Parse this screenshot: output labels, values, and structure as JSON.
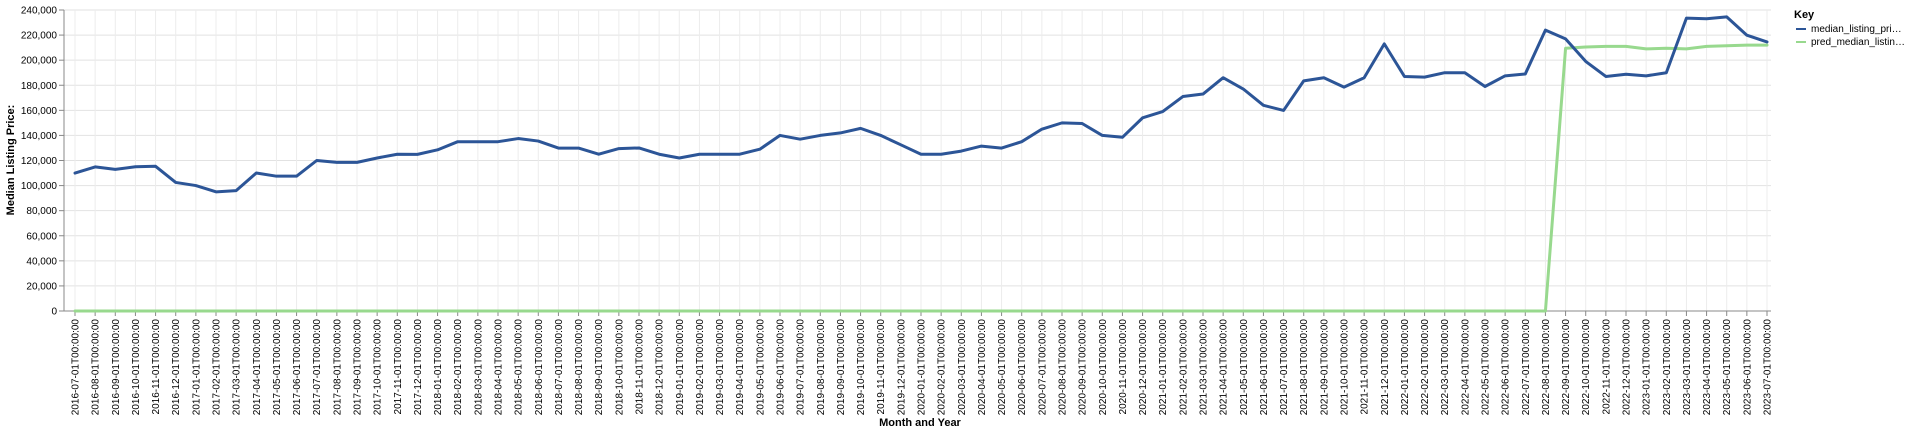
{
  "chart_data": {
    "type": "line",
    "xlabel": "Month and Year",
    "ylabel": "Median Listing Price:",
    "ylim": [
      0,
      240000
    ],
    "yticks": [
      "0",
      "20,000",
      "40,000",
      "60,000",
      "80,000",
      "100,000",
      "120,000",
      "140,000",
      "160,000",
      "180,000",
      "200,000",
      "220,000",
      "240,000"
    ],
    "grid": true,
    "legend": {
      "title": "Key",
      "position": "right"
    },
    "x": [
      "2016-07-01T00:00:00",
      "2016-08-01T00:00:00",
      "2016-09-01T00:00:00",
      "2016-10-01T00:00:00",
      "2016-11-01T00:00:00",
      "2016-12-01T00:00:00",
      "2017-01-01T00:00:00",
      "2017-02-01T00:00:00",
      "2017-03-01T00:00:00",
      "2017-04-01T00:00:00",
      "2017-05-01T00:00:00",
      "2017-06-01T00:00:00",
      "2017-07-01T00:00:00",
      "2017-08-01T00:00:00",
      "2017-09-01T00:00:00",
      "2017-10-01T00:00:00",
      "2017-11-01T00:00:00",
      "2017-12-01T00:00:00",
      "2018-01-01T00:00:00",
      "2018-02-01T00:00:00",
      "2018-03-01T00:00:00",
      "2018-04-01T00:00:00",
      "2018-05-01T00:00:00",
      "2018-06-01T00:00:00",
      "2018-07-01T00:00:00",
      "2018-08-01T00:00:00",
      "2018-09-01T00:00:00",
      "2018-10-01T00:00:00",
      "2018-11-01T00:00:00",
      "2018-12-01T00:00:00",
      "2019-01-01T00:00:00",
      "2019-02-01T00:00:00",
      "2019-03-01T00:00:00",
      "2019-04-01T00:00:00",
      "2019-05-01T00:00:00",
      "2019-06-01T00:00:00",
      "2019-07-01T00:00:00",
      "2019-08-01T00:00:00",
      "2019-09-01T00:00:00",
      "2019-10-01T00:00:00",
      "2019-11-01T00:00:00",
      "2019-12-01T00:00:00",
      "2020-01-01T00:00:00",
      "2020-02-01T00:00:00",
      "2020-03-01T00:00:00",
      "2020-04-01T00:00:00",
      "2020-05-01T00:00:00",
      "2020-06-01T00:00:00",
      "2020-07-01T00:00:00",
      "2020-08-01T00:00:00",
      "2020-09-01T00:00:00",
      "2020-10-01T00:00:00",
      "2020-11-01T00:00:00",
      "2020-12-01T00:00:00",
      "2021-01-01T00:00:00",
      "2021-02-01T00:00:00",
      "2021-03-01T00:00:00",
      "2021-04-01T00:00:00",
      "2021-05-01T00:00:00",
      "2021-06-01T00:00:00",
      "2021-07-01T00:00:00",
      "2021-08-01T00:00:00",
      "2021-09-01T00:00:00",
      "2021-10-01T00:00:00",
      "2021-11-01T00:00:00",
      "2021-12-01T00:00:00",
      "2022-01-01T00:00:00",
      "2022-02-01T00:00:00",
      "2022-03-01T00:00:00",
      "2022-04-01T00:00:00",
      "2022-05-01T00:00:00",
      "2022-06-01T00:00:00",
      "2022-07-01T00:00:00",
      "2022-08-01T00:00:00",
      "2022-09-01T00:00:00",
      "2022-10-01T00:00:00",
      "2022-11-01T00:00:00",
      "2022-12-01T00:00:00",
      "2023-01-01T00:00:00",
      "2023-02-01T00:00:00",
      "2023-03-01T00:00:00",
      "2023-04-01T00:00:00",
      "2023-05-01T00:00:00",
      "2023-06-01T00:00:00",
      "2023-07-01T00:00:00"
    ],
    "series": [
      {
        "name": "median_listing_pri…",
        "color": "#2c5597",
        "values": [
          110000,
          114900,
          112900,
          115000,
          115400,
          102500,
          100000,
          95000,
          96000,
          110000,
          107500,
          107500,
          120000,
          118500,
          118500,
          122000,
          125000,
          124900,
          128500,
          135000,
          135000,
          135000,
          137500,
          135500,
          129900,
          129900,
          125000,
          129500,
          130000,
          125000,
          122000,
          125000,
          125000,
          125000,
          129000,
          140000,
          137000,
          140000,
          142000,
          145600,
          140000,
          132500,
          125000,
          125000,
          127500,
          131500,
          129900,
          135000,
          145000,
          150000,
          149500,
          140000,
          138500,
          154000,
          159000,
          171000,
          173000,
          186000,
          177000,
          164000,
          159900,
          183500,
          186000,
          178500,
          186000,
          213000,
          187000,
          186500,
          190000,
          190000,
          179000,
          187500,
          189000,
          224000,
          217000,
          199000,
          187000,
          188800,
          187500,
          190000,
          233500,
          233000,
          234500,
          219900,
          214500
        ]
      },
      {
        "name": "pred_median_listin…",
        "color": "#98d98e",
        "values": [
          0,
          0,
          0,
          0,
          0,
          0,
          0,
          0,
          0,
          0,
          0,
          0,
          0,
          0,
          0,
          0,
          0,
          0,
          0,
          0,
          0,
          0,
          0,
          0,
          0,
          0,
          0,
          0,
          0,
          0,
          0,
          0,
          0,
          0,
          0,
          0,
          0,
          0,
          0,
          0,
          0,
          0,
          0,
          0,
          0,
          0,
          0,
          0,
          0,
          0,
          0,
          0,
          0,
          0,
          0,
          0,
          0,
          0,
          0,
          0,
          0,
          0,
          0,
          0,
          0,
          0,
          0,
          0,
          0,
          0,
          0,
          0,
          0,
          0,
          209500,
          210500,
          211000,
          211000,
          209000,
          209500,
          209000,
          211000,
          211500,
          212000,
          212000
        ]
      }
    ]
  }
}
